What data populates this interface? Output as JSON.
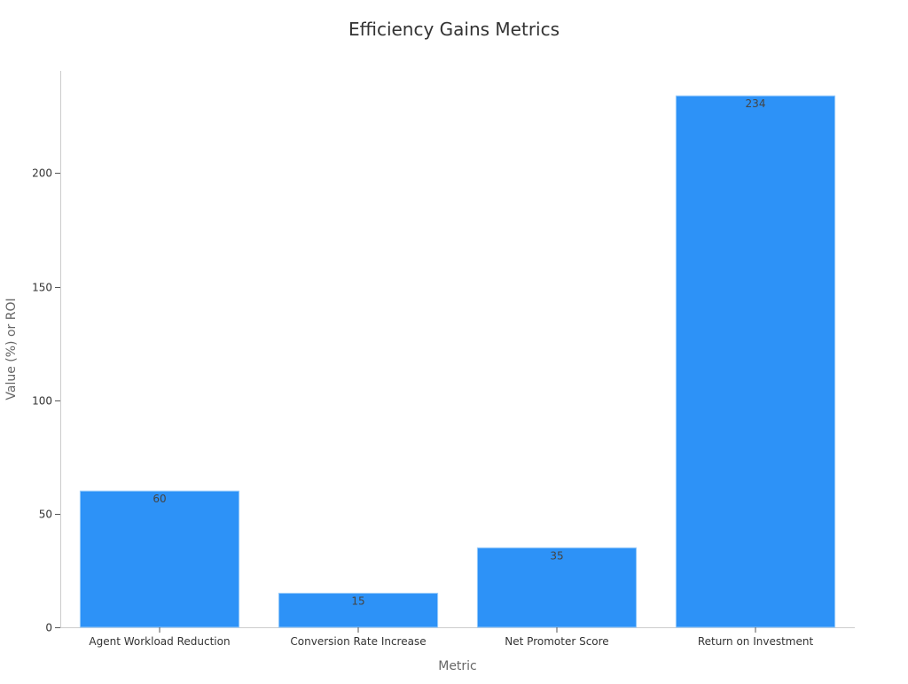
{
  "chart_data": {
    "type": "bar",
    "title": "Efficiency Gains Metrics",
    "xlabel": "Metric",
    "ylabel": "Value (%) or ROI",
    "categories": [
      "Agent Workload Reduction",
      "Conversion Rate Increase",
      "Net Promoter Score",
      "Return on Investment"
    ],
    "values": [
      60,
      15,
      35,
      234
    ],
    "ylim": [
      0,
      245
    ],
    "yticks": [
      0,
      50,
      100,
      150,
      200
    ],
    "grid": false,
    "legend": "none",
    "bar_color": "#2d92f7",
    "bar_edge_color": "#9ccdfb"
  }
}
